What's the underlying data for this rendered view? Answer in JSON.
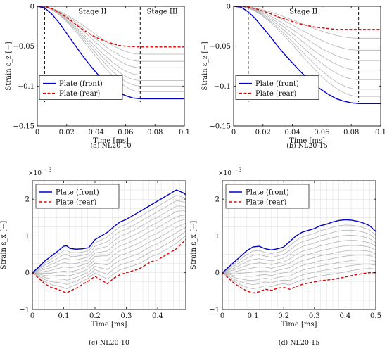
{
  "chart_data": [
    {
      "type": "line",
      "caption": "(a) NL20-10",
      "xlabel": "Time [ms]",
      "ylabel": "Strain ε_z [−]",
      "xlim": [
        0,
        0.1
      ],
      "ylim": [
        -0.15,
        0
      ],
      "xticks": [
        0,
        0.02,
        0.04,
        0.06,
        0.08,
        0.1
      ],
      "yticks": [
        0,
        -0.05,
        -0.1,
        -0.15
      ],
      "xtick_labels": [
        "0",
        "0.02",
        "0.04",
        "0.06",
        "0.08",
        "0.1"
      ],
      "ytick_labels": [
        "0",
        "−0.05",
        "−0.1",
        "−0.15"
      ],
      "grid": false,
      "vlines": [
        0.005,
        0.07
      ],
      "annotations": [
        {
          "text": "Stage II",
          "x": 0.0375,
          "y": -0.004
        },
        {
          "text": "Stage III",
          "x": 0.085,
          "y": -0.004
        }
      ],
      "series": [
        {
          "name": "Plate (front)",
          "color": "#0000cc",
          "dash": "solid",
          "x": [
            0,
            0.005,
            0.01,
            0.015,
            0.02,
            0.025,
            0.03,
            0.035,
            0.04,
            0.045,
            0.05,
            0.055,
            0.06,
            0.065,
            0.07,
            0.075,
            0.08,
            0.085,
            0.09,
            0.095,
            0.1
          ],
          "y": [
            0,
            -0.002,
            -0.01,
            -0.021,
            -0.034,
            -0.047,
            -0.06,
            -0.072,
            -0.083,
            -0.093,
            -0.101,
            -0.108,
            -0.112,
            -0.115,
            -0.116,
            -0.116,
            -0.116,
            -0.116,
            -0.116,
            -0.116,
            -0.116
          ]
        },
        {
          "name": "Plate (rear)",
          "color": "#dd0000",
          "dash": "dashed",
          "x": [
            0,
            0.005,
            0.01,
            0.015,
            0.02,
            0.025,
            0.03,
            0.035,
            0.04,
            0.045,
            0.05,
            0.055,
            0.06,
            0.065,
            0.07,
            0.075,
            0.08,
            0.085,
            0.09,
            0.095,
            0.1
          ],
          "y": [
            0,
            0,
            -0.003,
            -0.008,
            -0.014,
            -0.021,
            -0.028,
            -0.034,
            -0.039,
            -0.043,
            -0.046,
            -0.049,
            -0.05,
            -0.0505,
            -0.051,
            -0.051,
            -0.051,
            -0.051,
            -0.051,
            -0.051,
            -0.051
          ]
        }
      ],
      "intermediate_gray_final_values": [
        -0.06,
        -0.069,
        -0.077,
        -0.086,
        -0.093,
        -0.1,
        -0.107
      ]
    },
    {
      "type": "line",
      "caption": "(b) NL20-15",
      "xlabel": "Time [ms]",
      "ylabel": "Strain ε_z [−]",
      "xlim": [
        0,
        0.1
      ],
      "ylim": [
        -0.15,
        0
      ],
      "xticks": [
        0,
        0.02,
        0.04,
        0.06,
        0.08,
        0.1
      ],
      "yticks": [
        0,
        -0.05,
        -0.1,
        -0.15
      ],
      "xtick_labels": [
        "0",
        "0.02",
        "0.04",
        "0.06",
        "0.08",
        "0.1"
      ],
      "ytick_labels": [
        "0",
        "−0.05",
        "−0.1",
        "−0.15"
      ],
      "grid": false,
      "vlines": [
        0.01,
        0.085
      ],
      "annotations": [
        {
          "text": "Stage II",
          "x": 0.0475,
          "y": -0.004
        }
      ],
      "series": [
        {
          "name": "Plate (front)",
          "color": "#0000cc",
          "dash": "solid",
          "x": [
            0,
            0.005,
            0.01,
            0.015,
            0.02,
            0.025,
            0.03,
            0.035,
            0.04,
            0.045,
            0.05,
            0.055,
            0.06,
            0.065,
            0.07,
            0.075,
            0.08,
            0.085,
            0.09,
            0.095,
            0.1
          ],
          "y": [
            0,
            -0.001,
            -0.007,
            -0.016,
            -0.027,
            -0.038,
            -0.05,
            -0.061,
            -0.071,
            -0.081,
            -0.09,
            -0.098,
            -0.105,
            -0.111,
            -0.116,
            -0.119,
            -0.121,
            -0.122,
            -0.122,
            -0.122,
            -0.122
          ]
        },
        {
          "name": "Plate (rear)",
          "color": "#dd0000",
          "dash": "dashed",
          "x": [
            0,
            0.005,
            0.01,
            0.015,
            0.02,
            0.025,
            0.03,
            0.035,
            0.04,
            0.045,
            0.05,
            0.055,
            0.06,
            0.065,
            0.07,
            0.075,
            0.08,
            0.085,
            0.09,
            0.095,
            0.1
          ],
          "y": [
            0,
            0,
            -0.001,
            -0.003,
            -0.006,
            -0.009,
            -0.013,
            -0.016,
            -0.019,
            -0.022,
            -0.024,
            -0.026,
            -0.027,
            -0.028,
            -0.029,
            -0.029,
            -0.029,
            -0.029,
            -0.029,
            -0.029,
            -0.029
          ]
        }
      ],
      "intermediate_gray_final_values": [
        -0.04,
        -0.055,
        -0.068,
        -0.08,
        -0.092,
        -0.104,
        -0.113
      ]
    },
    {
      "type": "line",
      "caption": "(c) NL20-10",
      "xlabel": "Time [ms]",
      "ylabel": "Strain ε_x [−]",
      "y_multiplier_label": "×10",
      "y_multiplier_exponent": "−3",
      "xlim": [
        0,
        0.49
      ],
      "ylim": [
        -1,
        2.5
      ],
      "xticks": [
        0,
        0.1,
        0.2,
        0.3,
        0.4
      ],
      "yticks": [
        -1,
        0,
        1,
        2
      ],
      "xtick_labels": [
        "0",
        "0.1",
        "0.2",
        "0.3",
        "0.4"
      ],
      "ytick_labels": [
        "−1",
        "0",
        "1",
        "2"
      ],
      "grid": true,
      "legend_position": "top-left",
      "series": [
        {
          "name": "Plate (front)",
          "color": "#0000cc",
          "dash": "solid",
          "x": [
            0,
            0.02,
            0.04,
            0.06,
            0.08,
            0.1,
            0.11,
            0.12,
            0.14,
            0.16,
            0.18,
            0.2,
            0.22,
            0.24,
            0.26,
            0.28,
            0.3,
            0.32,
            0.34,
            0.36,
            0.38,
            0.4,
            0.42,
            0.44,
            0.46,
            0.48,
            0.49
          ],
          "y": [
            0,
            0.15,
            0.32,
            0.45,
            0.58,
            0.72,
            0.73,
            0.66,
            0.64,
            0.65,
            0.68,
            0.9,
            1.0,
            1.1,
            1.25,
            1.38,
            1.45,
            1.55,
            1.65,
            1.75,
            1.85,
            1.95,
            2.05,
            2.15,
            2.25,
            2.18,
            2.12
          ]
        },
        {
          "name": "Plate (rear)",
          "color": "#dd0000",
          "dash": "dashed",
          "x": [
            0,
            0.02,
            0.04,
            0.06,
            0.08,
            0.1,
            0.11,
            0.12,
            0.14,
            0.16,
            0.18,
            0.2,
            0.22,
            0.24,
            0.26,
            0.28,
            0.3,
            0.32,
            0.34,
            0.36,
            0.38,
            0.4,
            0.42,
            0.44,
            0.46,
            0.48,
            0.49
          ],
          "y": [
            0,
            -0.15,
            -0.3,
            -0.4,
            -0.45,
            -0.52,
            -0.55,
            -0.5,
            -0.42,
            -0.32,
            -0.22,
            -0.1,
            -0.2,
            -0.3,
            -0.15,
            -0.05,
            0.0,
            0.05,
            0.1,
            0.2,
            0.3,
            0.35,
            0.45,
            0.55,
            0.65,
            0.82,
            0.9
          ]
        }
      ]
    },
    {
      "type": "line",
      "caption": "(d) NL20-15",
      "xlabel": "Time [ms]",
      "ylabel": "Strain ε_x [−]",
      "y_multiplier_label": "×10",
      "y_multiplier_exponent": "−3",
      "xlim": [
        0,
        0.5
      ],
      "ylim": [
        -1,
        2.5
      ],
      "xticks": [
        0,
        0.1,
        0.2,
        0.3,
        0.4,
        0.5
      ],
      "yticks": [
        -1,
        0,
        1,
        2
      ],
      "xtick_labels": [
        "0",
        "0.1",
        "0.2",
        "0.3",
        "0.4",
        "0.5"
      ],
      "ytick_labels": [
        "−1",
        "0",
        "1",
        "2"
      ],
      "grid": true,
      "legend_position": "top-left",
      "series": [
        {
          "name": "Plate (front)",
          "color": "#0000cc",
          "dash": "solid",
          "x": [
            0,
            0.02,
            0.04,
            0.06,
            0.08,
            0.1,
            0.12,
            0.14,
            0.16,
            0.18,
            0.2,
            0.22,
            0.24,
            0.26,
            0.28,
            0.3,
            0.32,
            0.34,
            0.36,
            0.38,
            0.4,
            0.42,
            0.44,
            0.46,
            0.48,
            0.5
          ],
          "y": [
            0,
            0.15,
            0.3,
            0.45,
            0.6,
            0.7,
            0.72,
            0.65,
            0.62,
            0.65,
            0.7,
            0.85,
            1.0,
            1.1,
            1.15,
            1.2,
            1.28,
            1.32,
            1.38,
            1.42,
            1.44,
            1.43,
            1.4,
            1.35,
            1.28,
            1.12
          ]
        },
        {
          "name": "Plate (rear)",
          "color": "#dd0000",
          "dash": "dashed",
          "x": [
            0,
            0.02,
            0.04,
            0.06,
            0.08,
            0.1,
            0.12,
            0.14,
            0.16,
            0.18,
            0.2,
            0.22,
            0.24,
            0.26,
            0.28,
            0.3,
            0.32,
            0.34,
            0.36,
            0.38,
            0.4,
            0.42,
            0.44,
            0.46,
            0.48,
            0.5
          ],
          "y": [
            0,
            -0.15,
            -0.3,
            -0.4,
            -0.5,
            -0.55,
            -0.52,
            -0.45,
            -0.48,
            -0.42,
            -0.4,
            -0.45,
            -0.38,
            -0.32,
            -0.28,
            -0.25,
            -0.22,
            -0.2,
            -0.18,
            -0.15,
            -0.12,
            -0.08,
            -0.05,
            -0.02,
            0.0,
            0.0
          ]
        }
      ]
    }
  ]
}
